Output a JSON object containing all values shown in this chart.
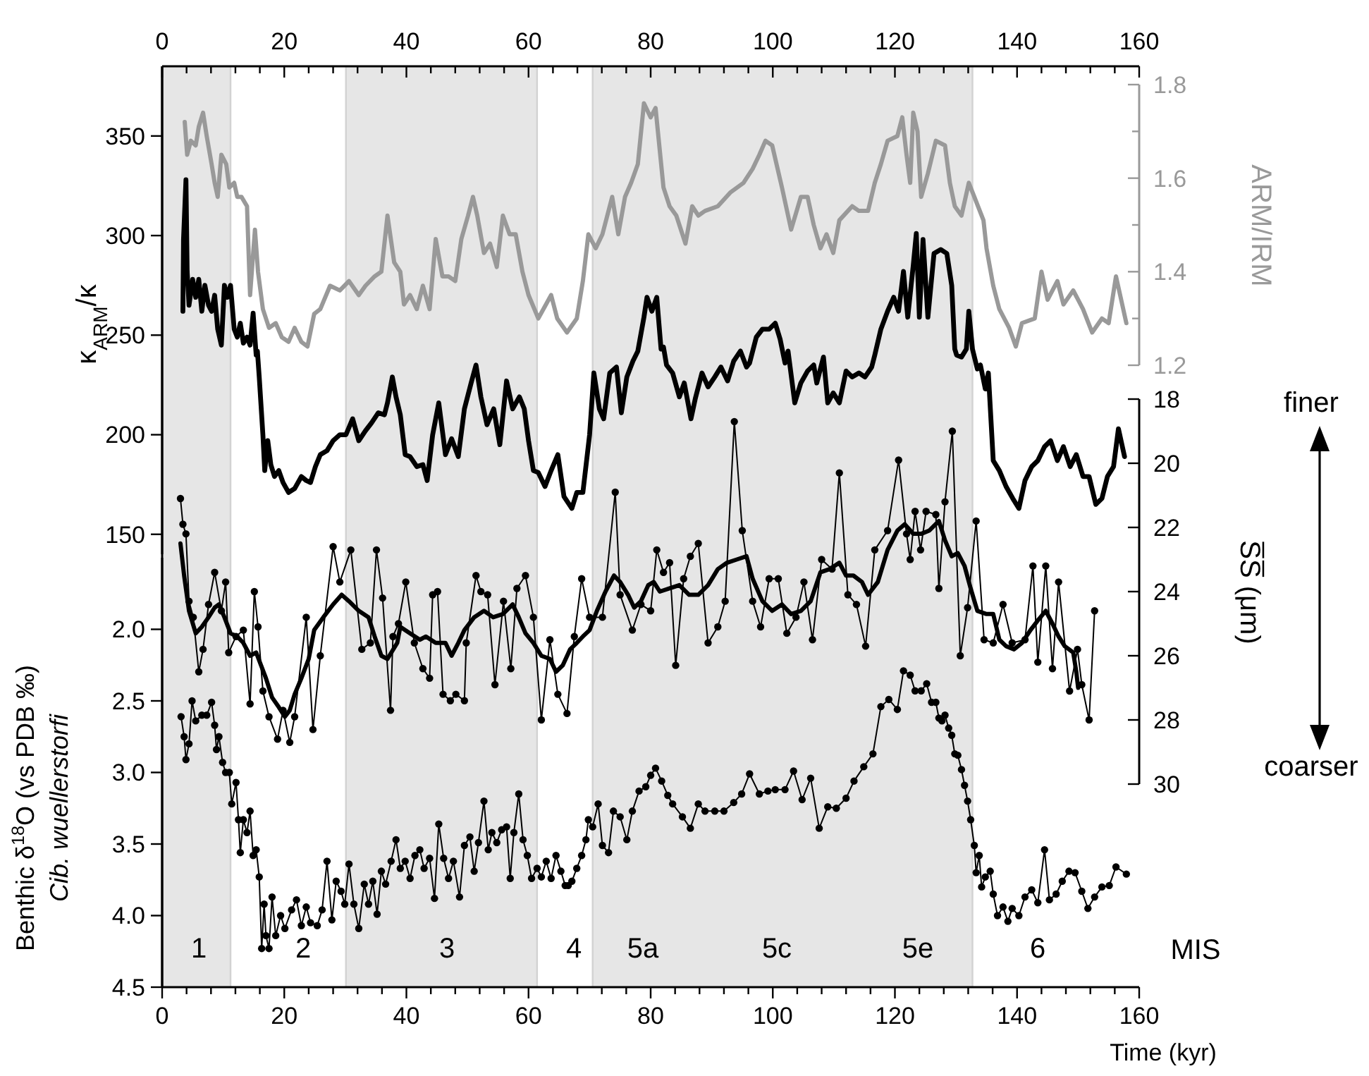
{
  "chart_data": [
    {
      "type": "line",
      "ylabel": "κ$_{ARM}$/κ",
      "y2label": "ARM/IRM",
      "xlim": [
        0,
        160
      ],
      "xticks": [
        0,
        {
          "value": 4,
          "label": null
        },
        {
          "value": 8,
          "label": null
        },
        {
          "value": 12,
          "label": null
        },
        {
          "value": 16,
          "label": null
        },
        20,
        {
          "value": 24,
          "label": null
        },
        {
          "value": 28,
          "label": null
        },
        {
          "value": 32,
          "label": null
        },
        {
          "value": 36,
          "label": null
        },
        40,
        {
          "value": 44,
          "label": null
        },
        {
          "value": 48,
          "label": null
        },
        {
          "value": 52,
          "label": null
        },
        {
          "value": 56,
          "label": null
        },
        60,
        {
          "value": 64,
          "label": null
        },
        {
          "value": 68,
          "label": null
        },
        {
          "value": 72,
          "label": null
        },
        {
          "value": 76,
          "label": null
        },
        80,
        {
          "value": 84,
          "label": null
        },
        {
          "value": 88,
          "label": null
        },
        {
          "value": 92,
          "label": null
        },
        {
          "value": 96,
          "label": null
        },
        100,
        {
          "value": 104,
          "label": null
        },
        {
          "value": 108,
          "label": null
        },
        {
          "value": 112,
          "label": null
        },
        {
          "value": 116,
          "label": null
        },
        120,
        {
          "value": 124,
          "label": null
        },
        {
          "value": 128,
          "label": null
        },
        {
          "value": 132,
          "label": null
        },
        {
          "value": 136,
          "label": null
        },
        140,
        {
          "value": 144,
          "label": null
        },
        {
          "value": 148,
          "label": null
        },
        {
          "value": 152,
          "label": null
        },
        {
          "value": 156,
          "label": null
        },
        160
      ],
      "ylim": [
        140,
        385
      ],
      "yticks": [
        150,
        200,
        250,
        300,
        350
      ],
      "y2lim": [
        1.2,
        1.8
      ],
      "y2ticks": [
        1.2,
        {
          "value": 1.3,
          "label": null
        },
        1.4,
        {
          "value": 1.5,
          "label": null
        },
        1.6,
        {
          "value": 1.7,
          "label": null
        },
        1.8
      ],
      "series": [
        {
          "axis": "y2",
          "color": "#999999",
          "marker": "none",
          "x": [
            3.7,
            4.1,
            4.7,
            5.5,
            6.0,
            6.7,
            7.3,
            8.1,
            8.6,
            9.1,
            9.7,
            10.5,
            11.0,
            11.8,
            12.3,
            13.0,
            13.9,
            14.4,
            15.2,
            15.7,
            16.5,
            17.5,
            18.6,
            19.6,
            20.7,
            21.7,
            22.8,
            23.8,
            24.9,
            25.9,
            27.5,
            29.1,
            30.6,
            32.2,
            33.3,
            34.8,
            35.9,
            36.9,
            38.0,
            39.0,
            39.6,
            40.6,
            41.7,
            42.7,
            43.8,
            44.8,
            45.9,
            46.9,
            48.0,
            49.0,
            50.1,
            50.9,
            51.6,
            52.7,
            53.7,
            54.8,
            55.8,
            56.9,
            57.9,
            59.0,
            60.0,
            61.6,
            63.7,
            64.7,
            66.3,
            67.9,
            68.9,
            69.8,
            71.0,
            72.1,
            73.7,
            74.7,
            75.8,
            76.8,
            77.9,
            78.9,
            80.0,
            80.8,
            82.1,
            83.1,
            84.2,
            85.7,
            86.8,
            87.8,
            88.9,
            91.0,
            93.1,
            95.2,
            96.7,
            97.8,
            98.8,
            99.9,
            101.5,
            103.0,
            104.6,
            105.7,
            106.7,
            107.8,
            108.8,
            109.9,
            110.9,
            113.0,
            114.1,
            115.6,
            116.7,
            117.7,
            118.8,
            120.4,
            121.2,
            121.9,
            122.5,
            123.0,
            123.7,
            124.3,
            125.4,
            126.7,
            128.2,
            129.0,
            129.8,
            130.9,
            132.1,
            133.0,
            134.5,
            135.0,
            136.1,
            137.1,
            138.7,
            139.8,
            140.8,
            142.9,
            144.0,
            145.0,
            146.6,
            147.6,
            149.2,
            150.8,
            152.3,
            153.9,
            155.0,
            156.2,
            157.9
          ],
          "values": [
            1.72,
            1.65,
            1.68,
            1.67,
            1.71,
            1.74,
            1.69,
            1.63,
            1.59,
            1.56,
            1.65,
            1.63,
            1.58,
            1.59,
            1.56,
            1.56,
            1.54,
            1.35,
            1.49,
            1.4,
            1.32,
            1.28,
            1.29,
            1.26,
            1.25,
            1.28,
            1.25,
            1.24,
            1.31,
            1.32,
            1.37,
            1.36,
            1.38,
            1.35,
            1.37,
            1.39,
            1.4,
            1.52,
            1.42,
            1.4,
            1.33,
            1.35,
            1.32,
            1.37,
            1.32,
            1.47,
            1.39,
            1.39,
            1.38,
            1.47,
            1.52,
            1.56,
            1.52,
            1.44,
            1.46,
            1.41,
            1.52,
            1.48,
            1.48,
            1.4,
            1.35,
            1.3,
            1.35,
            1.3,
            1.27,
            1.3,
            1.38,
            1.48,
            1.45,
            1.48,
            1.56,
            1.48,
            1.56,
            1.59,
            1.63,
            1.76,
            1.73,
            1.75,
            1.58,
            1.54,
            1.52,
            1.46,
            1.54,
            1.52,
            1.53,
            1.54,
            1.57,
            1.59,
            1.62,
            1.65,
            1.68,
            1.67,
            1.58,
            1.49,
            1.56,
            1.56,
            1.5,
            1.45,
            1.48,
            1.44,
            1.51,
            1.54,
            1.53,
            1.53,
            1.59,
            1.63,
            1.68,
            1.69,
            1.73,
            1.65,
            1.59,
            1.74,
            1.7,
            1.56,
            1.61,
            1.68,
            1.67,
            1.59,
            1.54,
            1.52,
            1.59,
            1.56,
            1.51,
            1.45,
            1.37,
            1.32,
            1.28,
            1.24,
            1.29,
            1.3,
            1.4,
            1.34,
            1.38,
            1.33,
            1.36,
            1.32,
            1.27,
            1.3,
            1.29,
            1.39,
            1.29
          ]
        },
        {
          "color": "#000000",
          "marker": "none",
          "x": [
            3.4,
            3.5,
            3.9,
            4.1,
            4.4,
            5.0,
            5.5,
            6.0,
            6.5,
            7.0,
            7.6,
            8.1,
            8.6,
            9.1,
            9.7,
            10.2,
            10.7,
            11.2,
            11.8,
            12.3,
            12.8,
            13.3,
            13.9,
            14.4,
            14.9,
            15.4,
            15.6,
            15.9,
            16.5,
            16.8,
            17.3,
            17.8,
            18.4,
            19.1,
            19.8,
            20.7,
            21.7,
            22.8,
            23.6,
            24.3,
            25.1,
            25.9,
            27.0,
            28.0,
            29.1,
            30.1,
            31.2,
            32.2,
            33.3,
            34.3,
            35.4,
            36.4,
            36.9,
            37.7,
            38.3,
            39.0,
            39.8,
            40.6,
            41.7,
            42.7,
            43.4,
            44.3,
            45.3,
            46.4,
            47.4,
            48.5,
            49.5,
            50.6,
            51.4,
            52.2,
            53.2,
            54.3,
            55.3,
            56.4,
            57.4,
            58.5,
            59.3,
            60.0,
            60.8,
            61.6,
            62.7,
            63.7,
            64.8,
            65.8,
            67.1,
            67.9,
            68.9,
            70.0,
            70.7,
            71.6,
            72.3,
            73.3,
            74.4,
            75.2,
            76.1,
            77.1,
            77.9,
            78.9,
            79.4,
            80.2,
            81.0,
            81.7,
            82.1,
            82.6,
            83.6,
            84.7,
            85.5,
            86.6,
            87.3,
            88.4,
            89.4,
            90.5,
            91.5,
            92.6,
            93.6,
            94.7,
            95.7,
            96.2,
            97.3,
            98.3,
            99.4,
            100.4,
            101.2,
            102.0,
            102.5,
            103.6,
            104.6,
            105.7,
            106.7,
            107.2,
            108.3,
            109.0,
            109.9,
            110.9,
            112.0,
            113.0,
            114.1,
            115.1,
            116.2,
            116.7,
            117.7,
            118.8,
            119.8,
            120.6,
            121.4,
            122.1,
            123.0,
            123.5,
            124.0,
            124.6,
            125.4,
            126.4,
            127.5,
            128.5,
            129.3,
            129.8,
            130.1,
            130.9,
            131.7,
            132.1,
            132.7,
            133.5,
            134.0,
            134.8,
            135.3,
            136.1,
            137.1,
            138.2,
            139.3,
            140.3,
            141.3,
            142.4,
            143.4,
            144.5,
            145.5,
            146.6,
            147.6,
            148.7,
            149.7,
            150.8,
            151.8,
            152.9,
            153.9,
            154.8,
            155.8,
            156.6,
            157.6
          ],
          "values": [
            262,
            298,
            328,
            282,
            265,
            278,
            269,
            278,
            262,
            275,
            265,
            262,
            270,
            253,
            245,
            275,
            269,
            275,
            253,
            249,
            256,
            246,
            249,
            245,
            261,
            240,
            242,
            229,
            200,
            182,
            197,
            185,
            179,
            182,
            176,
            171,
            173,
            179,
            177,
            176,
            184,
            190,
            192,
            197,
            200,
            200,
            208,
            197,
            202,
            206,
            211,
            210,
            216,
            229,
            219,
            210,
            190,
            189,
            184,
            185,
            177,
            200,
            216,
            190,
            198,
            189,
            213,
            226,
            235,
            219,
            205,
            213,
            195,
            227,
            213,
            219,
            213,
            197,
            182,
            181,
            174,
            182,
            190,
            169,
            163,
            171,
            171,
            200,
            231,
            213,
            208,
            231,
            234,
            211,
            229,
            237,
            242,
            259,
            269,
            262,
            269,
            243,
            244,
            235,
            231,
            219,
            226,
            208,
            218,
            231,
            224,
            229,
            234,
            227,
            237,
            242,
            234,
            236,
            249,
            253,
            253,
            256,
            248,
            236,
            242,
            216,
            226,
            232,
            235,
            226,
            239,
            216,
            221,
            216,
            232,
            229,
            231,
            229,
            234,
            240,
            253,
            262,
            269,
            262,
            282,
            259,
            285,
            301,
            259,
            298,
            259,
            291,
            293,
            291,
            275,
            243,
            240,
            239,
            243,
            262,
            243,
            233,
            235,
            223,
            231,
            187,
            182,
            174,
            168,
            163,
            177,
            184,
            187,
            194,
            197,
            187,
            194,
            184,
            190,
            179,
            179,
            165,
            168,
            179,
            184,
            203,
            189
          ]
        }
      ]
    },
    {
      "type": "line",
      "xlabel": "Time (kyr)",
      "ylabel": "Benthic δ$^{18}$O (vs PDB ‰)\nCib. wuellerstorfi",
      "y2label": "S̅S̅ (μm)",
      "xlim": [
        0,
        160
      ],
      "xticks": [
        0,
        {
          "value": 4,
          "label": null
        },
        {
          "value": 8,
          "label": null
        },
        {
          "value": 12,
          "label": null
        },
        {
          "value": 16,
          "label": null
        },
        20,
        {
          "value": 24,
          "label": null
        },
        {
          "value": 28,
          "label": null
        },
        {
          "value": 32,
          "label": null
        },
        {
          "value": 36,
          "label": null
        },
        40,
        {
          "value": 44,
          "label": null
        },
        {
          "value": 48,
          "label": null
        },
        {
          "value": 52,
          "label": null
        },
        {
          "value": 56,
          "label": null
        },
        60,
        {
          "value": 64,
          "label": null
        },
        {
          "value": 68,
          "label": null
        },
        {
          "value": 72,
          "label": null
        },
        {
          "value": 76,
          "label": null
        },
        80,
        {
          "value": 84,
          "label": null
        },
        {
          "value": 88,
          "label": null
        },
        {
          "value": 92,
          "label": null
        },
        {
          "value": 96,
          "label": null
        },
        100,
        {
          "value": 104,
          "label": null
        },
        {
          "value": 108,
          "label": null
        },
        {
          "value": 112,
          "label": null
        },
        {
          "value": 116,
          "label": null
        },
        120,
        {
          "value": 124,
          "label": null
        },
        {
          "value": 128,
          "label": null
        },
        {
          "value": 132,
          "label": null
        },
        {
          "value": 136,
          "label": null
        },
        140,
        {
          "value": 144,
          "label": null
        },
        {
          "value": 148,
          "label": null
        },
        {
          "value": 152,
          "label": null
        },
        {
          "value": 156,
          "label": null
        },
        160
      ],
      "ylim": [
        4.5,
        1.5
      ],
      "yticks": [
        {
          "value": 2,
          "label": "2.0"
        },
        2.5,
        {
          "value": 3,
          "label": "3.0"
        },
        3.5,
        {
          "value": 4,
          "label": "4.0"
        },
        4.5
      ],
      "y2lim": [
        30,
        18
      ],
      "y2ticks": [
        18,
        20,
        22,
        24,
        26,
        28,
        30
      ],
      "bands": [
        {
          "axis": "x",
          "from": 0,
          "to": 11.2,
          "color": "#e6e6e6"
        },
        {
          "axis": "x",
          "from": 30.1,
          "to": 61.4,
          "color": "#e6e6e6"
        },
        {
          "axis": "x",
          "from": 70.5,
          "to": 132.7,
          "color": "#e6e6e6"
        }
      ],
      "annotations": [
        "finer",
        "coarser",
        "MIS",
        "1",
        "2",
        "3",
        "4",
        "5a",
        "5c",
        "5e",
        "6"
      ],
      "series": [
        {
          "axis": "y2",
          "color": "#000000",
          "marker": "circle",
          "x": [
            3.0,
            3.4,
            3.9,
            4.4,
            5.1,
            6.0,
            6.7,
            7.6,
            8.6,
            9.7,
            10.4,
            10.9,
            12.1,
            13.3,
            14.4,
            15.1,
            15.7,
            16.5,
            17.5,
            18.9,
            19.8,
            20.9,
            21.7,
            23.6,
            24.7,
            25.9,
            28.0,
            29.1,
            30.9,
            32.7,
            34.1,
            35.1,
            36.1,
            37.4,
            37.8,
            38.7,
            39.9,
            41.3,
            42.7,
            43.8,
            44.3,
            45.1,
            46.0,
            47.2,
            48.1,
            49.5,
            49.8,
            51.4,
            52.2,
            53.3,
            54.5,
            55.9,
            57.1,
            58.1,
            59.5,
            60.8,
            62.1,
            63.5,
            64.8,
            66.3,
            67.5,
            68.7,
            70.0,
            72.1,
            74.2,
            75.0,
            77.0,
            78.4,
            80.0,
            81.0,
            82.1,
            83.1,
            84.1,
            85.4,
            86.5,
            87.8,
            89.4,
            91.0,
            92.2,
            93.7,
            95.0,
            96.7,
            98.0,
            99.4,
            100.9,
            102.3,
            103.8,
            105.1,
            106.5,
            108.0,
            109.7,
            110.9,
            112.3,
            113.7,
            115.2,
            116.7,
            118.8,
            120.6,
            121.9,
            122.5,
            123.3,
            124.2,
            125.1,
            126.7,
            127.2,
            128.2,
            129.4,
            130.7,
            131.9,
            133.3,
            134.6,
            136.1,
            137.7,
            139.2,
            141.3,
            142.6,
            143.4,
            144.7,
            145.8,
            146.8,
            148.6,
            149.9,
            150.6,
            151.8,
            152.7
          ],
          "values": [
            21.1,
            21.9,
            22.2,
            24.3,
            24.8,
            26.5,
            25.8,
            24.4,
            23.4,
            24.6,
            23.7,
            25.9,
            25.4,
            25.2,
            27.5,
            24.0,
            25.1,
            27.1,
            27.9,
            28.6,
            27.7,
            28.7,
            27.9,
            24.8,
            28.3,
            26.0,
            22.6,
            23.7,
            22.7,
            25.8,
            25.6,
            22.7,
            24.2,
            27.7,
            25.4,
            25.0,
            23.7,
            25.6,
            26.4,
            26.7,
            24.1,
            24.0,
            27.2,
            27.4,
            27.2,
            27.4,
            25.6,
            23.5,
            24.0,
            24.1,
            26.9,
            24.3,
            26.4,
            23.9,
            23.5,
            24.8,
            28.0,
            25.5,
            27.2,
            27.8,
            25.4,
            23.6,
            24.8,
            24.8,
            20.9,
            24.1,
            25.2,
            24.4,
            24.6,
            22.7,
            23.4,
            23.1,
            26.3,
            23.6,
            22.9,
            22.5,
            25.6,
            25.1,
            24.3,
            18.7,
            22.1,
            24.3,
            25.1,
            23.6,
            23.6,
            25.3,
            24.8,
            23.7,
            25.5,
            23.0,
            23.3,
            20.3,
            24.1,
            24.4,
            25.7,
            22.7,
            22.1,
            19.9,
            22.2,
            23.0,
            21.5,
            22.7,
            21.5,
            21.6,
            23.9,
            21.2,
            19.0,
            26.0,
            24.5,
            21.8,
            25.5,
            25.6,
            24.4,
            25.6,
            25.5,
            23.2,
            26.2,
            23.2,
            26.4,
            23.7,
            27.1,
            25.8,
            26.9,
            28.0,
            24.6
          ]
        },
        {
          "axis": "y2",
          "color": "#000000",
          "marker": "none",
          "x": [
            3.0,
            3.6,
            4.4,
            5.5,
            6.5,
            7.6,
            8.6,
            9.3,
            10.2,
            11.2,
            12.3,
            13.3,
            14.4,
            15.4,
            17.0,
            18.0,
            19.1,
            20.1,
            20.9,
            21.7,
            22.8,
            24.0,
            24.9,
            26.4,
            28.0,
            29.4,
            30.6,
            32.2,
            33.8,
            34.8,
            35.9,
            36.9,
            38.5,
            39.0,
            40.6,
            42.2,
            43.2,
            44.8,
            46.4,
            47.4,
            48.5,
            49.5,
            51.1,
            52.7,
            54.2,
            55.8,
            57.4,
            58.4,
            59.5,
            60.8,
            62.1,
            63.5,
            64.5,
            65.6,
            66.8,
            67.9,
            68.9,
            70.0,
            71.2,
            72.6,
            74.0,
            75.0,
            76.3,
            77.3,
            78.4,
            79.6,
            80.5,
            81.5,
            83.1,
            84.7,
            86.3,
            87.8,
            89.4,
            91.0,
            92.5,
            94.1,
            95.7,
            96.7,
            98.3,
            99.9,
            101.5,
            103.0,
            104.6,
            106.2,
            107.8,
            109.3,
            110.9,
            112.0,
            113.2,
            114.6,
            115.6,
            117.2,
            118.8,
            120.4,
            121.6,
            123.0,
            124.3,
            125.6,
            127.2,
            128.2,
            129.3,
            130.3,
            131.4,
            132.4,
            133.5,
            135.0,
            136.1,
            137.1,
            138.2,
            139.5,
            140.8,
            142.2,
            143.4,
            144.7,
            145.8,
            146.8,
            147.8,
            149.2,
            149.7,
            150.0
          ],
          "values": [
            22.5,
            23.5,
            24.6,
            25.3,
            25.1,
            24.8,
            24.5,
            24.4,
            24.8,
            25.3,
            25.4,
            25.6,
            26.0,
            25.9,
            26.7,
            27.3,
            27.6,
            27.9,
            27.7,
            27.2,
            26.7,
            26.1,
            25.2,
            24.8,
            24.4,
            24.1,
            24.3,
            24.6,
            24.8,
            25.4,
            26.0,
            26.1,
            25.6,
            25.1,
            25.3,
            25.5,
            25.4,
            25.6,
            25.6,
            26.0,
            25.6,
            25.2,
            24.8,
            24.6,
            24.8,
            24.7,
            24.4,
            24.8,
            25.3,
            25.6,
            26.0,
            26.1,
            26.5,
            26.3,
            25.8,
            25.6,
            25.4,
            25.2,
            24.6,
            24.0,
            23.5,
            23.7,
            24.1,
            24.5,
            24.3,
            23.8,
            23.7,
            24.0,
            23.9,
            23.8,
            24.1,
            24.1,
            23.8,
            23.3,
            23.1,
            23.0,
            22.9,
            23.6,
            24.3,
            24.6,
            24.4,
            24.7,
            24.6,
            24.3,
            23.4,
            23.3,
            23.1,
            23.5,
            23.5,
            23.7,
            24.1,
            23.7,
            22.7,
            22.1,
            21.9,
            22.2,
            22.2,
            22.1,
            21.8,
            22.4,
            22.9,
            22.8,
            23.2,
            23.9,
            24.6,
            24.7,
            24.7,
            25.5,
            25.7,
            25.8,
            25.6,
            25.2,
            24.9,
            24.6,
            25.0,
            25.4,
            25.7,
            25.9,
            26.5,
            27.0
          ]
        },
        {
          "color": "#000000",
          "marker": "circle",
          "x": [
            3.1,
            3.6,
            3.9,
            4.4,
            4.9,
            5.5,
            6.5,
            7.3,
            8.1,
            8.6,
            8.9,
            9.3,
            9.9,
            10.4,
            11.0,
            11.4,
            12.1,
            12.5,
            12.8,
            13.3,
            13.9,
            14.4,
            14.9,
            15.4,
            15.9,
            16.3,
            16.7,
            17.0,
            17.5,
            18.0,
            18.6,
            19.4,
            20.1,
            21.2,
            22.0,
            22.8,
            23.6,
            24.3,
            25.4,
            26.2,
            27.0,
            27.8,
            28.5,
            29.3,
            29.9,
            30.6,
            31.4,
            32.2,
            33.1,
            33.8,
            34.5,
            35.2,
            35.9,
            36.6,
            37.5,
            38.3,
            39.0,
            39.8,
            40.6,
            41.4,
            42.2,
            42.9,
            43.8,
            44.6,
            45.3,
            46.1,
            46.9,
            47.7,
            48.7,
            49.5,
            50.4,
            51.1,
            51.8,
            52.7,
            53.4,
            54.0,
            54.8,
            55.6,
            56.4,
            57.0,
            57.6,
            58.4,
            59.1,
            59.8,
            60.5,
            61.4,
            62.1,
            62.9,
            63.7,
            64.5,
            65.3,
            66.0,
            66.5,
            67.1,
            67.9,
            68.7,
            69.4,
            69.8,
            70.5,
            71.4,
            72.1,
            73.1,
            73.9,
            75.0,
            76.1,
            77.0,
            78.1,
            79.2,
            80.0,
            80.8,
            81.8,
            82.8,
            83.6,
            85.2,
            86.5,
            87.8,
            88.9,
            90.5,
            92.0,
            93.6,
            94.9,
            96.2,
            97.8,
            99.2,
            100.4,
            102.0,
            103.4,
            104.8,
            106.2,
            107.6,
            109.0,
            110.4,
            112.0,
            113.3,
            114.9,
            116.4,
            117.7,
            119.0,
            120.4,
            121.4,
            122.5,
            123.3,
            124.3,
            125.2,
            126.0,
            126.7,
            127.2,
            127.7,
            128.2,
            128.8,
            129.3,
            129.8,
            130.3,
            130.9,
            131.4,
            131.9,
            132.4,
            133.0,
            133.3,
            133.8,
            134.2,
            134.8,
            135.6,
            136.1,
            136.8,
            137.7,
            138.5,
            139.2,
            140.3,
            141.3,
            142.4,
            143.4,
            144.5,
            145.3,
            146.4,
            147.4,
            148.5,
            149.5,
            150.6,
            151.6,
            152.7,
            153.9,
            155.1,
            156.2,
            157.9
          ],
          "values": [
            2.61,
            2.75,
            2.91,
            2.8,
            2.5,
            2.64,
            2.6,
            2.6,
            2.51,
            2.67,
            2.84,
            2.75,
            2.93,
            3.0,
            3.0,
            3.22,
            3.07,
            3.33,
            3.56,
            3.33,
            3.42,
            3.27,
            3.58,
            3.54,
            3.73,
            4.23,
            3.92,
            4.14,
            4.23,
            3.87,
            4.14,
            4.0,
            4.09,
            3.96,
            3.89,
            4.07,
            3.94,
            4.05,
            4.07,
            3.96,
            3.62,
            4.03,
            3.76,
            3.83,
            3.92,
            3.64,
            3.92,
            4.09,
            3.78,
            3.92,
            3.76,
            3.99,
            3.69,
            3.78,
            3.62,
            3.47,
            3.67,
            3.62,
            3.74,
            3.58,
            3.54,
            3.67,
            3.6,
            3.88,
            3.36,
            3.6,
            3.74,
            3.62,
            3.87,
            3.51,
            3.45,
            3.69,
            3.49,
            3.2,
            3.54,
            3.42,
            3.49,
            3.4,
            3.38,
            3.74,
            3.42,
            3.15,
            3.47,
            3.58,
            3.74,
            3.67,
            3.73,
            3.62,
            3.74,
            3.58,
            3.69,
            3.79,
            3.79,
            3.76,
            3.67,
            3.58,
            3.47,
            3.33,
            3.38,
            3.22,
            3.51,
            3.56,
            3.27,
            3.31,
            3.47,
            3.27,
            3.13,
            3.1,
            3.02,
            2.97,
            3.06,
            3.16,
            3.22,
            3.31,
            3.39,
            3.22,
            3.27,
            3.27,
            3.27,
            3.21,
            3.15,
            3.01,
            3.15,
            3.13,
            3.12,
            3.12,
            2.99,
            3.19,
            3.04,
            3.39,
            3.24,
            3.25,
            3.18,
            3.06,
            2.96,
            2.87,
            2.54,
            2.49,
            2.56,
            2.29,
            2.32,
            2.43,
            2.43,
            2.38,
            2.51,
            2.51,
            2.62,
            2.64,
            2.6,
            2.69,
            2.74,
            2.87,
            2.88,
            2.98,
            3.09,
            3.2,
            3.33,
            3.51,
            3.7,
            3.58,
            3.8,
            3.73,
            3.69,
            3.85,
            4.0,
            3.94,
            4.04,
            3.95,
            4.0,
            3.87,
            3.82,
            3.91,
            3.54,
            3.89,
            3.85,
            3.76,
            3.69,
            3.7,
            3.83,
            3.95,
            3.87,
            3.8,
            3.79,
            3.66,
            3.71
          ]
        }
      ]
    }
  ]
}
